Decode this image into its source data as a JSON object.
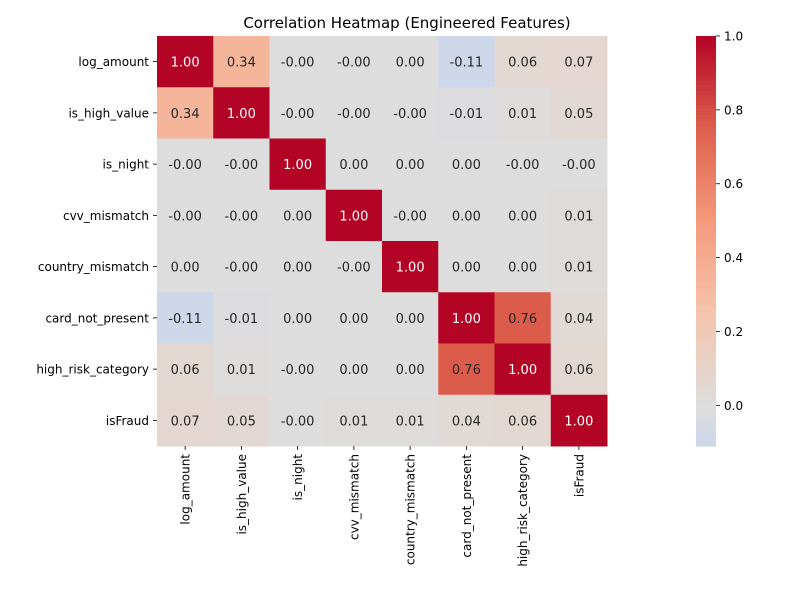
{
  "chart_data": {
    "type": "heatmap",
    "title": "Correlation Heatmap (Engineered Features)",
    "xlabel": "",
    "ylabel": "",
    "row_labels": [
      "log_amount",
      "is_high_value",
      "is_night",
      "cvv_mismatch",
      "country_mismatch",
      "card_not_present",
      "high_risk_category",
      "isFraud"
    ],
    "col_labels": [
      "log_amount",
      "is_high_value",
      "is_night",
      "cvv_mismatch",
      "country_mismatch",
      "card_not_present",
      "high_risk_category",
      "isFraud"
    ],
    "values": [
      [
        1.0,
        0.34,
        -0.0,
        -0.0,
        0.0,
        -0.11,
        0.06,
        0.07
      ],
      [
        0.34,
        1.0,
        -0.0,
        -0.0,
        -0.0,
        -0.01,
        0.01,
        0.05
      ],
      [
        -0.0,
        -0.0,
        1.0,
        0.0,
        0.0,
        0.0,
        -0.0,
        -0.0
      ],
      [
        -0.0,
        -0.0,
        0.0,
        1.0,
        -0.0,
        0.0,
        0.0,
        0.01
      ],
      [
        0.0,
        -0.0,
        0.0,
        -0.0,
        1.0,
        0.0,
        0.0,
        0.01
      ],
      [
        -0.11,
        -0.01,
        0.0,
        0.0,
        0.0,
        1.0,
        0.76,
        0.04
      ],
      [
        0.06,
        0.01,
        -0.0,
        0.0,
        0.0,
        0.76,
        1.0,
        0.06
      ],
      [
        0.07,
        0.05,
        -0.0,
        0.01,
        0.01,
        0.04,
        0.06,
        1.0
      ]
    ],
    "annotations": [
      [
        "1.00",
        "0.34",
        "-0.00",
        "-0.00",
        "0.00",
        "-0.11",
        "0.06",
        "0.07"
      ],
      [
        "0.34",
        "1.00",
        "-0.00",
        "-0.00",
        "-0.00",
        "-0.01",
        "0.01",
        "0.05"
      ],
      [
        "-0.00",
        "-0.00",
        "1.00",
        "0.00",
        "0.00",
        "0.00",
        "-0.00",
        "-0.00"
      ],
      [
        "-0.00",
        "-0.00",
        "0.00",
        "1.00",
        "-0.00",
        "0.00",
        "0.00",
        "0.01"
      ],
      [
        "0.00",
        "-0.00",
        "0.00",
        "-0.00",
        "1.00",
        "0.00",
        "0.00",
        "0.01"
      ],
      [
        "-0.11",
        "-0.01",
        "0.00",
        "0.00",
        "0.00",
        "1.00",
        "0.76",
        "0.04"
      ],
      [
        "0.06",
        "0.01",
        "-0.00",
        "0.00",
        "0.00",
        "0.76",
        "1.00",
        "0.06"
      ],
      [
        "0.07",
        "0.05",
        "-0.00",
        "0.01",
        "0.01",
        "0.04",
        "0.06",
        "1.00"
      ]
    ],
    "colormap": "coolwarm",
    "center": 0,
    "vmin": -0.11,
    "vmax": 1.0,
    "colorbar_ticks": [
      {
        "value": 0.0,
        "label": "0.0"
      },
      {
        "value": 0.2,
        "label": "0.2"
      },
      {
        "value": 0.4,
        "label": "0.4"
      },
      {
        "value": 0.6,
        "label": "0.6"
      },
      {
        "value": 0.8,
        "label": "0.8"
      },
      {
        "value": 1.0,
        "label": "1.0"
      }
    ],
    "colors": {
      "cold": "#3b4cc0",
      "neutral": "#dddddd",
      "hot": "#b40426"
    }
  }
}
